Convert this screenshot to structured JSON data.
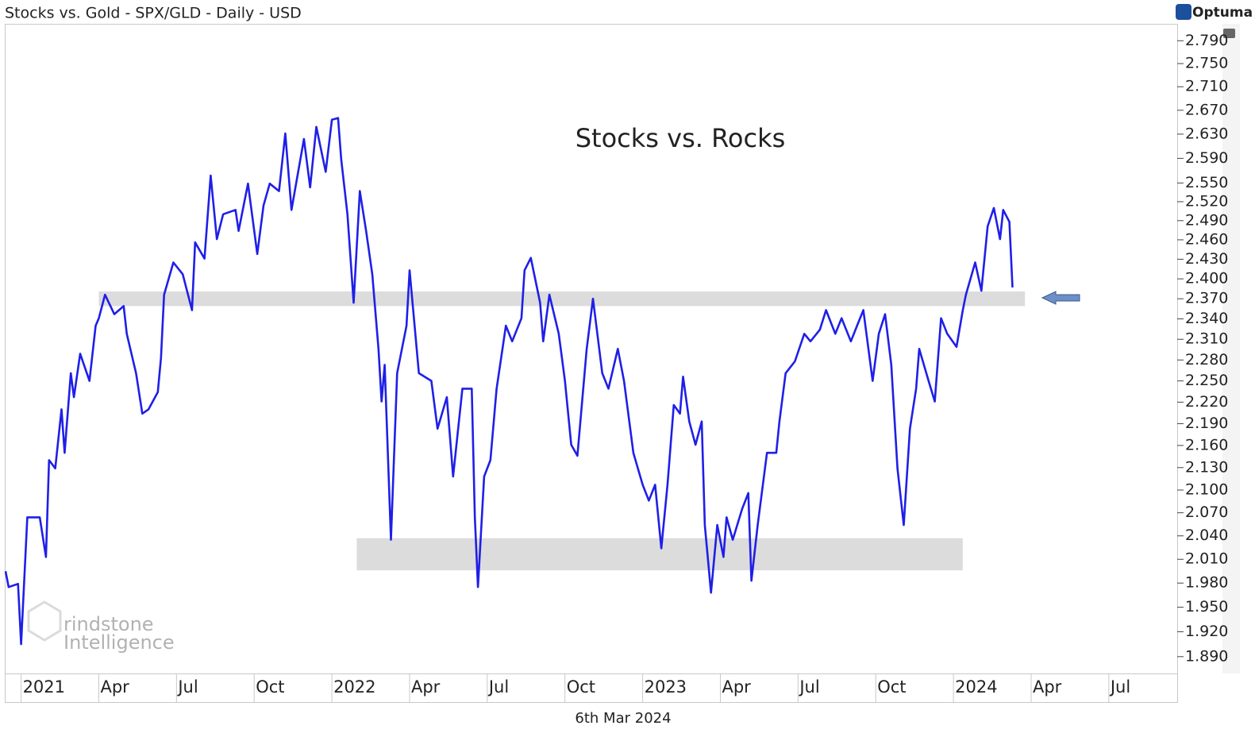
{
  "chart_data": {
    "type": "line",
    "title": "Stocks vs. Gold - SPX/GLD - Daily - USD",
    "brand": "Optuma",
    "annotation": "Stocks vs. Rocks",
    "date_label": "6th Mar 2024",
    "watermark": [
      "rindstone",
      "Intelligence"
    ],
    "color": "#1f1fe8",
    "log_scale": true,
    "ylim": [
      1.87,
      2.82
    ],
    "xlim": [
      2020.95,
      2024.72
    ],
    "yticks": [
      {
        "value": 1.89,
        "label": "1.890"
      },
      {
        "value": 1.92,
        "label": "1.920"
      },
      {
        "value": 1.95,
        "label": "1.950"
      },
      {
        "value": 1.98,
        "label": "1.980"
      },
      {
        "value": 2.01,
        "label": "2.010"
      },
      {
        "value": 2.04,
        "label": "2.040"
      },
      {
        "value": 2.07,
        "label": "2.070"
      },
      {
        "value": 2.1,
        "label": "2.100"
      },
      {
        "value": 2.13,
        "label": "2.130"
      },
      {
        "value": 2.16,
        "label": "2.160"
      },
      {
        "value": 2.19,
        "label": "2.190"
      },
      {
        "value": 2.22,
        "label": "2.220"
      },
      {
        "value": 2.25,
        "label": "2.250"
      },
      {
        "value": 2.28,
        "label": "2.280"
      },
      {
        "value": 2.31,
        "label": "2.310"
      },
      {
        "value": 2.34,
        "label": "2.340"
      },
      {
        "value": 2.37,
        "label": "2.370"
      },
      {
        "value": 2.4,
        "label": "2.400"
      },
      {
        "value": 2.43,
        "label": "2.430"
      },
      {
        "value": 2.46,
        "label": "2.460"
      },
      {
        "value": 2.49,
        "label": "2.490"
      },
      {
        "value": 2.52,
        "label": "2.520"
      },
      {
        "value": 2.55,
        "label": "2.550"
      },
      {
        "value": 2.59,
        "label": "2.590"
      },
      {
        "value": 2.63,
        "label": "2.630"
      },
      {
        "value": 2.67,
        "label": "2.670"
      },
      {
        "value": 2.71,
        "label": "2.710"
      },
      {
        "value": 2.75,
        "label": "2.750"
      },
      {
        "value": 2.79,
        "label": "2.790"
      }
    ],
    "xticks": [
      2021,
      {
        "value": 2021.25,
        "label": "Apr"
      },
      {
        "value": 2021.5,
        "label": "Jul"
      },
      {
        "value": 2021.75,
        "label": "Oct"
      },
      2022,
      {
        "value": 2022.25,
        "label": "Apr"
      },
      {
        "value": 2022.5,
        "label": "Jul"
      },
      {
        "value": 2022.75,
        "label": "Oct"
      },
      2023,
      {
        "value": 2023.25,
        "label": "Apr"
      },
      {
        "value": 2023.5,
        "label": "Jul"
      },
      {
        "value": 2023.75,
        "label": "Oct"
      },
      2024,
      {
        "value": 2024.25,
        "label": "Apr"
      },
      {
        "value": 2024.5,
        "label": "Jul"
      }
    ],
    "bands": [
      {
        "x": [
          2021.25,
          2024.23
        ],
        "y": [
          2.359,
          2.381
        ]
      },
      {
        "x": [
          2022.08,
          2024.03
        ],
        "y": [
          1.996,
          2.037
        ]
      }
    ],
    "x": [
      2020.95,
      2020.96,
      2020.99,
      2021.0,
      2021.02,
      2021.06,
      2021.08,
      2021.09,
      2021.11,
      2021.13,
      2021.14,
      2021.16,
      2021.17,
      2021.19,
      2021.22,
      2021.24,
      2021.25,
      2021.27,
      2021.3,
      2021.33,
      2021.34,
      2021.37,
      2021.39,
      2021.41,
      2021.44,
      2021.45,
      2021.46,
      2021.49,
      2021.52,
      2021.55,
      2021.56,
      2021.59,
      2021.61,
      2021.63,
      2021.65,
      2021.69,
      2021.7,
      2021.73,
      2021.76,
      2021.78,
      2021.8,
      2021.83,
      2021.85,
      2021.87,
      2021.91,
      2021.93,
      2021.95,
      2021.98,
      2022.0,
      2022.02,
      2022.03,
      2022.05,
      2022.07,
      2022.09,
      2022.11,
      2022.13,
      2022.15,
      2022.16,
      2022.17,
      2022.19,
      2022.21,
      2022.24,
      2022.25,
      2022.28,
      2022.32,
      2022.34,
      2022.37,
      2022.39,
      2022.42,
      2022.45,
      2022.46,
      2022.47,
      2022.49,
      2022.51,
      2022.53,
      2022.56,
      2022.58,
      2022.61,
      2022.62,
      2022.64,
      2022.67,
      2022.68,
      2022.7,
      2022.73,
      2022.75,
      2022.77,
      2022.79,
      2022.82,
      2022.84,
      2022.87,
      2022.89,
      2022.92,
      2022.94,
      2022.97,
      2023.0,
      2023.02,
      2023.04,
      2023.06,
      2023.08,
      2023.1,
      2023.12,
      2023.13,
      2023.15,
      2023.17,
      2023.19,
      2023.2,
      2023.22,
      2023.24,
      2023.26,
      2023.27,
      2023.29,
      2023.32,
      2023.34,
      2023.35,
      2023.37,
      2023.4,
      2023.43,
      2023.44,
      2023.46,
      2023.49,
      2023.52,
      2023.54,
      2023.57,
      2023.59,
      2023.62,
      2023.64,
      2023.67,
      2023.69,
      2023.71,
      2023.74,
      2023.76,
      2023.78,
      2023.8,
      2023.82,
      2023.84,
      2023.86,
      2023.88,
      2023.89,
      2023.92,
      2023.94,
      2023.96,
      2023.98,
      2024.01,
      2024.03,
      2024.04,
      2024.07,
      2024.09,
      2024.11,
      2024.13,
      2024.15,
      2024.16,
      2024.18,
      2024.19
    ],
    "values": [
      1.995,
      1.975,
      1.979,
      1.905,
      2.064,
      2.064,
      2.013,
      2.14,
      2.129,
      2.21,
      2.15,
      2.261,
      2.227,
      2.289,
      2.25,
      2.33,
      2.341,
      2.376,
      2.347,
      2.359,
      2.318,
      2.261,
      2.204,
      2.21,
      2.234,
      2.283,
      2.376,
      2.425,
      2.407,
      2.353,
      2.456,
      2.431,
      2.562,
      2.461,
      2.5,
      2.507,
      2.474,
      2.549,
      2.438,
      2.514,
      2.549,
      2.537,
      2.631,
      2.507,
      2.622,
      2.543,
      2.642,
      2.568,
      2.654,
      2.657,
      2.589,
      2.5,
      2.364,
      2.537,
      2.474,
      2.407,
      2.296,
      2.221,
      2.273,
      2.035,
      2.261,
      2.33,
      2.413,
      2.261,
      2.25,
      2.183,
      2.227,
      2.118,
      2.239,
      2.239,
      2.064,
      1.975,
      2.118,
      2.14,
      2.239,
      2.33,
      2.307,
      2.341,
      2.413,
      2.432,
      2.364,
      2.307,
      2.376,
      2.318,
      2.25,
      2.161,
      2.146,
      2.296,
      2.37,
      2.261,
      2.239,
      2.296,
      2.25,
      2.15,
      2.107,
      2.086,
      2.107,
      2.024,
      2.107,
      2.216,
      2.204,
      2.256,
      2.193,
      2.161,
      2.193,
      2.054,
      1.968,
      2.054,
      2.013,
      2.064,
      2.035,
      2.075,
      2.096,
      1.983,
      2.054,
      2.15,
      2.15,
      2.193,
      2.261,
      2.278,
      2.318,
      2.307,
      2.324,
      2.353,
      2.318,
      2.341,
      2.307,
      2.33,
      2.353,
      2.25,
      2.318,
      2.347,
      2.273,
      2.129,
      2.054,
      2.183,
      2.239,
      2.296,
      2.25,
      2.221,
      2.341,
      2.318,
      2.299,
      2.353,
      2.376,
      2.425,
      2.382,
      2.481,
      2.51,
      2.461,
      2.507,
      2.488,
      2.387
    ]
  }
}
